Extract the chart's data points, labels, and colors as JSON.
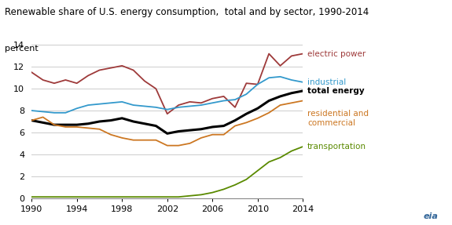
{
  "title": "Renewable share of U.S. energy consumption,  total and by sector, 1990-2014",
  "ylabel": "percent",
  "xlim": [
    1990,
    2014
  ],
  "ylim": [
    0,
    14
  ],
  "yticks": [
    0,
    2,
    4,
    6,
    8,
    10,
    12,
    14
  ],
  "xticks": [
    1990,
    1994,
    1998,
    2002,
    2006,
    2010,
    2014
  ],
  "years": [
    1990,
    1991,
    1992,
    1993,
    1994,
    1995,
    1996,
    1997,
    1998,
    1999,
    2000,
    2001,
    2002,
    2003,
    2004,
    2005,
    2006,
    2007,
    2008,
    2009,
    2010,
    2011,
    2012,
    2013,
    2014
  ],
  "electric_power": [
    11.5,
    10.8,
    10.5,
    10.8,
    10.5,
    11.2,
    11.7,
    11.9,
    12.1,
    11.7,
    10.7,
    10.0,
    7.7,
    8.5,
    8.8,
    8.7,
    9.1,
    9.3,
    8.3,
    10.5,
    10.4,
    13.2,
    12.1,
    13.0,
    13.2
  ],
  "industrial": [
    8.0,
    7.9,
    7.8,
    7.8,
    8.2,
    8.5,
    8.6,
    8.7,
    8.8,
    8.5,
    8.4,
    8.3,
    8.1,
    8.3,
    8.4,
    8.5,
    8.7,
    8.9,
    9.0,
    9.5,
    10.4,
    11.0,
    11.1,
    10.8,
    10.6
  ],
  "total_energy": [
    7.1,
    6.9,
    6.7,
    6.7,
    6.7,
    6.8,
    7.0,
    7.1,
    7.3,
    7.0,
    6.8,
    6.6,
    5.9,
    6.1,
    6.2,
    6.3,
    6.5,
    6.6,
    7.1,
    7.7,
    8.2,
    8.9,
    9.3,
    9.6,
    9.8
  ],
  "residential_commercial": [
    7.1,
    7.4,
    6.7,
    6.5,
    6.5,
    6.4,
    6.3,
    5.8,
    5.5,
    5.3,
    5.3,
    5.3,
    4.8,
    4.8,
    5.0,
    5.5,
    5.8,
    5.8,
    6.6,
    6.9,
    7.3,
    7.8,
    8.5,
    8.7,
    8.9
  ],
  "transportation": [
    0.1,
    0.1,
    0.1,
    0.1,
    0.1,
    0.1,
    0.1,
    0.1,
    0.1,
    0.1,
    0.1,
    0.1,
    0.1,
    0.1,
    0.2,
    0.3,
    0.5,
    0.8,
    1.2,
    1.7,
    2.5,
    3.3,
    3.7,
    4.3,
    4.7
  ],
  "color_electric": "#9e3a3a",
  "color_industrial": "#3399cc",
  "color_total": "#000000",
  "color_residential": "#cc7722",
  "color_transportation": "#5a8a00",
  "lw_total": 2.2,
  "lw_others": 1.3,
  "background_color": "#ffffff",
  "grid_color": "#cccccc",
  "label_fontsize": 7.5,
  "tick_fontsize": 8,
  "title_fontsize": 8.5
}
